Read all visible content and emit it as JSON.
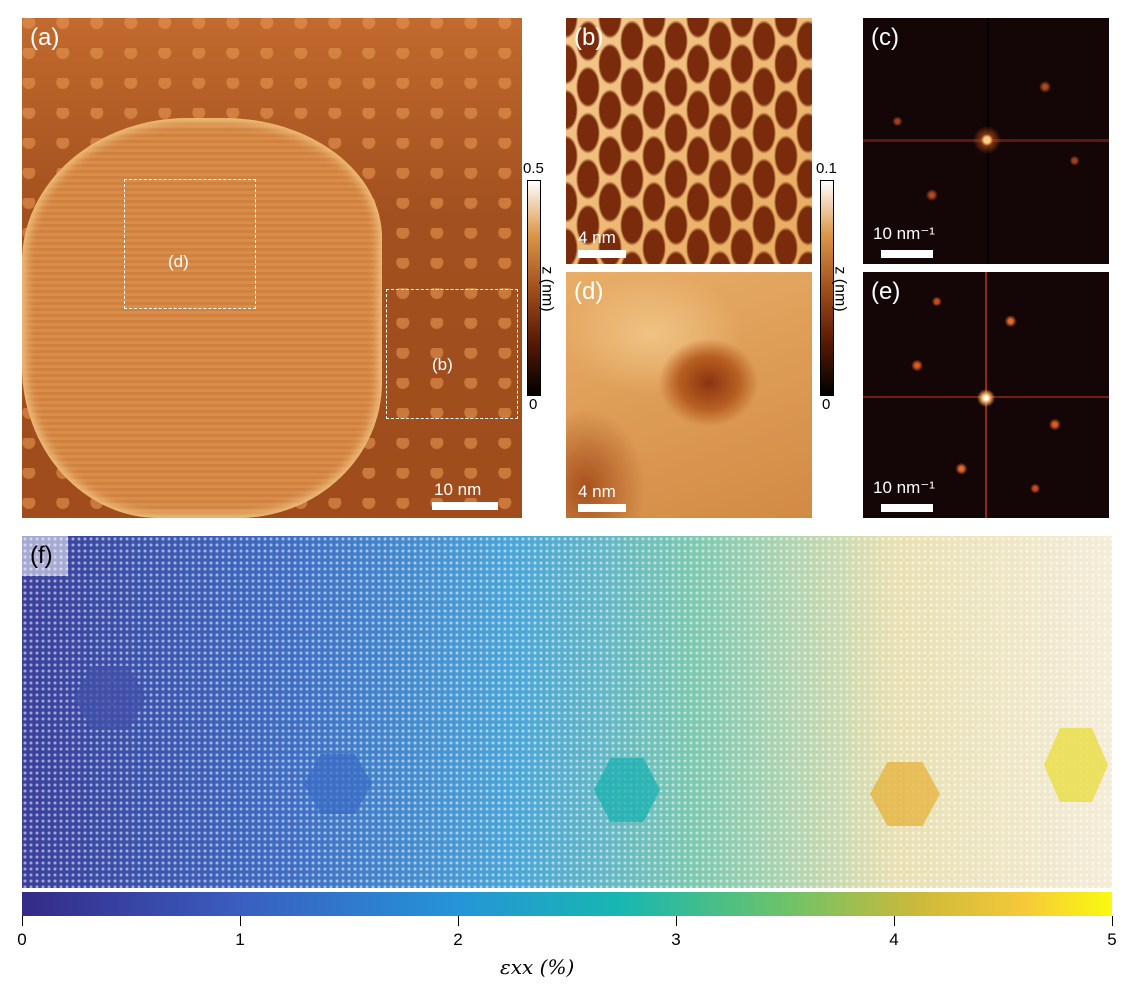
{
  "panels": {
    "a": {
      "label": "(a)",
      "scalebar": "10 nm",
      "regions": {
        "d": "(d)",
        "b": "(b)"
      }
    },
    "b": {
      "label": "(b)",
      "scalebar": "4 nm"
    },
    "c": {
      "label": "(c)",
      "scalebar": "10 nm⁻¹"
    },
    "d": {
      "label": "(d)",
      "scalebar": "4 nm"
    },
    "e": {
      "label": "(e)",
      "scalebar": "10 nm⁻¹"
    },
    "f": {
      "label": "(f)"
    }
  },
  "colorbars": {
    "a": {
      "max": "0.5",
      "min": "0",
      "title": "z (nm)"
    },
    "bd": {
      "max": "0.1",
      "min": "0",
      "title": "z (nm)"
    },
    "strain": {
      "ticks": [
        "0",
        "1",
        "2",
        "3",
        "4",
        "5"
      ],
      "title": "εxx (%)"
    }
  },
  "colors": {
    "afm_dark": "#7a2d0c",
    "afm_mid": "#c4692a",
    "afm_light": "#f3c98d",
    "fft_bg": "#140606"
  }
}
